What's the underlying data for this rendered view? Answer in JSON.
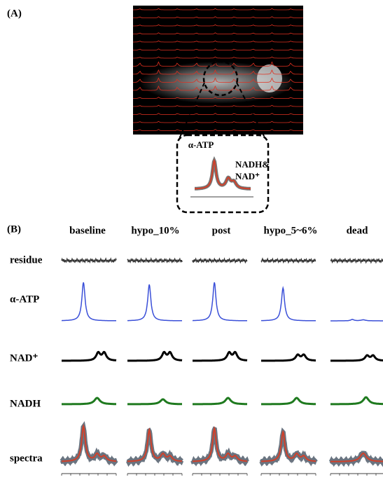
{
  "panel_a": {
    "label": "(A)",
    "inset": {
      "peak_label": "α-ATP",
      "label_line1": "NADH&",
      "label_line2": "NAD⁺"
    }
  },
  "panel_b": {
    "label": "(B)",
    "columns": [
      "baseline",
      "hypo_10%",
      "post",
      "hypo_5~6%",
      "dead"
    ],
    "rows": [
      "residue",
      "α-ATP",
      "NAD⁺",
      "NADH",
      "spectra"
    ]
  }
}
